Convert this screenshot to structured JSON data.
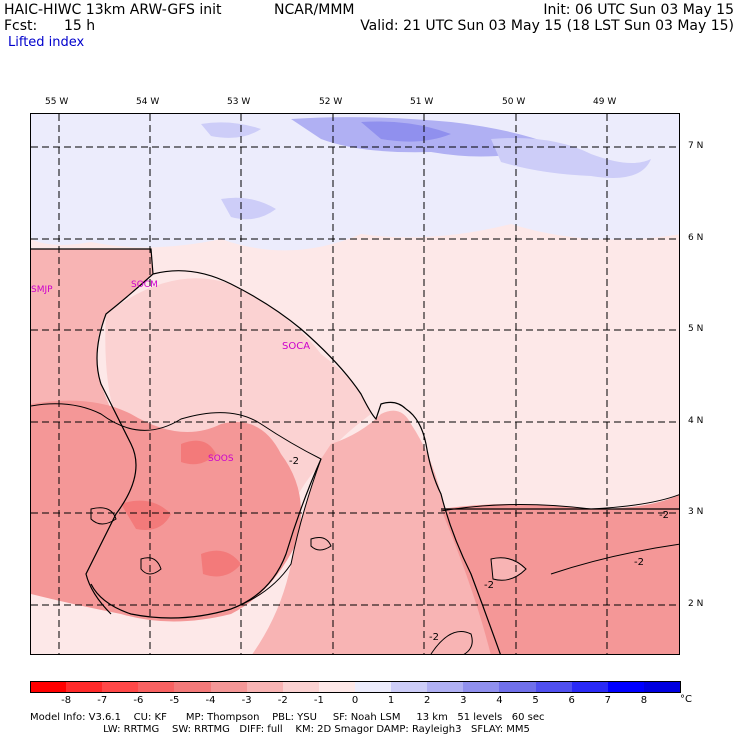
{
  "header": {
    "model": "HAIC-HIWC 13km ARW-GFS init",
    "org": "NCAR/MMM",
    "init": "Init: 06 UTC Sun 03 May 15",
    "fcst_label": "Fcst:",
    "fcst_value": "15 h",
    "valid": "Valid: 21 UTC Sun 03 May 15 (18 LST Sun 03 May 15)",
    "field": "Lifted index"
  },
  "map": {
    "lon_labels": [
      "55 W",
      "54 W",
      "53 W",
      "52 W",
      "51 W",
      "50 W",
      "49 W"
    ],
    "lat_labels": [
      "7 N",
      "6 N",
      "5 N",
      "4 N",
      "3 N",
      "2 N"
    ],
    "stations": [
      "SMJP",
      "SOCM",
      "SOCA",
      "SOOS"
    ],
    "contour_labels": [
      "-2",
      "-2",
      "-2",
      "-2",
      "-2"
    ]
  },
  "colorbar": {
    "unit": "°C",
    "labels": [
      "-8",
      "-7",
      "-6",
      "-5",
      "-4",
      "-3",
      "-2",
      "-1",
      "0",
      "1",
      "2",
      "3",
      "4",
      "5",
      "6",
      "7",
      "8"
    ],
    "colors": [
      "#ff0000",
      "#ff2a2a",
      "#ff4848",
      "#f86262",
      "#f37a7a",
      "#f49797",
      "#f8b4b4",
      "#fbd2d2",
      "#fde8e8",
      "#ececfc",
      "#cdcdf8",
      "#b0b0f3",
      "#9090ee",
      "#7070ea",
      "#5050f0",
      "#2a2af6",
      "#0000ff",
      "#0000e0"
    ]
  },
  "footer": {
    "line1": "Model Info: V3.6.1    CU: KF      MP: Thompson    PBL: YSU     SF: Noah LSM     13 km   51 levels   60 sec",
    "line2": "                       LW: RRTMG    SW: RRTMG   DIFF: full    KM: 2D Smagor DAMP: Rayleigh3   SFLAY: MM5"
  }
}
